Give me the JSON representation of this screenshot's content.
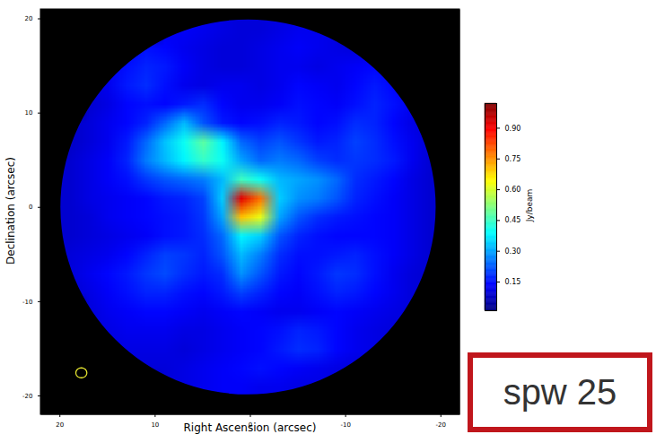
{
  "chart_data": {
    "type": "heatmap",
    "xlabel": "Right Ascension (arcsec)",
    "ylabel": "Declination (arcsec)",
    "xlim": [
      22,
      -22
    ],
    "ylim": [
      -22,
      21
    ],
    "xticks": [
      20,
      10,
      0,
      -10,
      -20
    ],
    "yticks": [
      -20,
      -10,
      0,
      10,
      20
    ],
    "annotation": "spw 25",
    "colorbar": {
      "label": "Jy/beam",
      "range": [
        0.01,
        1.02
      ],
      "ticks": [
        0.15,
        {
          "value": 0.3,
          "label": "0.30"
        },
        0.45,
        {
          "value": 0.6,
          "label": "0.60"
        },
        0.75,
        {
          "value": 0.9,
          "label": "0.90"
        }
      ]
    },
    "beam": {
      "x": 17.7,
      "y": -17.6,
      "major": 1.15,
      "minor": 1.05
    },
    "field": {
      "center": [
        0.2,
        0
      ],
      "radius": 19.7
    },
    "cells": {
      "x": [
        19,
        17,
        15,
        13,
        11,
        9,
        7,
        5,
        3,
        1,
        -1,
        -3,
        -5,
        -7,
        -9,
        -11,
        -13,
        -15,
        -17,
        -19
      ],
      "y": [
        19,
        17,
        15,
        13,
        11,
        9,
        7,
        5,
        3,
        1,
        -1,
        -3,
        -5,
        -7,
        -9,
        -11,
        -13,
        -15,
        -17,
        -19
      ],
      "values": [
        [
          null,
          null,
          null,
          null,
          null,
          0.12,
          0.13,
          0.12,
          0.11,
          0.1,
          0.1,
          0.11,
          0.12,
          0.12,
          0.11,
          null,
          null,
          null,
          null,
          null
        ],
        [
          null,
          null,
          null,
          0.13,
          0.15,
          0.14,
          0.12,
          0.11,
          0.1,
          0.1,
          0.11,
          0.12,
          0.13,
          0.12,
          0.11,
          0.1,
          0.1,
          null,
          null,
          null
        ],
        [
          null,
          null,
          0.12,
          0.15,
          0.17,
          0.16,
          0.13,
          0.11,
          0.1,
          0.1,
          0.11,
          0.12,
          0.12,
          0.11,
          0.12,
          0.13,
          0.14,
          0.12,
          null,
          null
        ],
        [
          null,
          0.1,
          0.12,
          0.16,
          0.18,
          0.15,
          0.12,
          0.11,
          0.12,
          0.12,
          0.11,
          0.12,
          0.14,
          0.13,
          0.12,
          0.14,
          0.16,
          0.14,
          0.11,
          null
        ],
        [
          null,
          0.09,
          0.11,
          0.14,
          0.15,
          0.14,
          0.16,
          0.18,
          0.14,
          0.12,
          0.12,
          0.13,
          0.15,
          0.14,
          0.13,
          0.15,
          0.17,
          0.15,
          0.12,
          null
        ],
        [
          0.08,
          0.1,
          0.12,
          0.14,
          0.17,
          0.24,
          0.32,
          0.22,
          0.16,
          0.14,
          0.15,
          0.17,
          0.16,
          0.14,
          0.15,
          0.18,
          0.17,
          0.14,
          0.11,
          0.09
        ],
        [
          0.08,
          0.1,
          0.12,
          0.16,
          0.24,
          0.33,
          0.4,
          0.48,
          0.38,
          0.24,
          0.2,
          0.22,
          0.19,
          0.16,
          0.17,
          0.2,
          0.18,
          0.15,
          0.12,
          0.09
        ],
        [
          0.09,
          0.11,
          0.13,
          0.17,
          0.26,
          0.32,
          0.38,
          0.44,
          0.4,
          0.3,
          0.24,
          0.26,
          0.24,
          0.2,
          0.18,
          0.19,
          0.18,
          0.16,
          0.12,
          0.09
        ],
        [
          0.09,
          0.11,
          0.13,
          0.15,
          0.19,
          0.22,
          0.24,
          0.26,
          0.32,
          0.45,
          0.4,
          0.32,
          0.3,
          0.28,
          0.24,
          0.18,
          0.16,
          0.14,
          0.11,
          0.09
        ],
        [
          0.09,
          0.11,
          0.12,
          0.13,
          0.14,
          0.16,
          0.17,
          0.2,
          0.34,
          0.92,
          0.78,
          0.34,
          0.28,
          0.26,
          0.22,
          0.17,
          0.15,
          0.13,
          0.11,
          0.09
        ],
        [
          0.09,
          0.1,
          0.12,
          0.13,
          0.14,
          0.15,
          0.16,
          0.19,
          0.3,
          0.7,
          0.62,
          0.3,
          0.22,
          0.18,
          0.16,
          0.15,
          0.14,
          0.13,
          0.11,
          0.09
        ],
        [
          0.09,
          0.1,
          0.11,
          0.12,
          0.13,
          0.15,
          0.16,
          0.18,
          0.24,
          0.38,
          0.34,
          0.22,
          0.17,
          0.15,
          0.14,
          0.14,
          0.14,
          0.13,
          0.11,
          0.09
        ],
        [
          0.1,
          0.11,
          0.12,
          0.14,
          0.17,
          0.2,
          0.19,
          0.17,
          0.22,
          0.32,
          0.26,
          0.18,
          0.15,
          0.15,
          0.16,
          0.17,
          0.15,
          0.13,
          0.11,
          0.09
        ],
        [
          0.1,
          0.12,
          0.14,
          0.16,
          0.19,
          0.21,
          0.18,
          0.16,
          0.18,
          0.28,
          0.22,
          0.16,
          0.14,
          0.16,
          0.19,
          0.18,
          0.15,
          0.12,
          0.1,
          0.09
        ],
        [
          0.09,
          0.11,
          0.13,
          0.15,
          0.17,
          0.17,
          0.15,
          0.14,
          0.16,
          0.2,
          0.17,
          0.14,
          0.13,
          0.15,
          0.17,
          0.16,
          0.14,
          0.12,
          0.1,
          0.09
        ],
        [
          null,
          0.1,
          0.12,
          0.13,
          0.14,
          0.14,
          0.13,
          0.12,
          0.13,
          0.14,
          0.13,
          0.12,
          0.12,
          0.13,
          0.14,
          0.13,
          0.12,
          0.11,
          0.1,
          null
        ],
        [
          null,
          0.1,
          0.11,
          0.12,
          0.12,
          0.12,
          0.11,
          0.11,
          0.12,
          0.13,
          0.14,
          0.15,
          0.17,
          0.16,
          0.14,
          0.12,
          0.11,
          0.1,
          0.1,
          null
        ],
        [
          null,
          null,
          0.1,
          0.11,
          0.11,
          0.11,
          0.1,
          0.11,
          0.12,
          0.13,
          0.14,
          0.16,
          0.18,
          0.17,
          0.14,
          0.12,
          0.11,
          0.1,
          null,
          null
        ],
        [
          null,
          null,
          null,
          0.1,
          0.1,
          0.1,
          0.11,
          0.12,
          0.13,
          0.14,
          0.15,
          0.14,
          0.13,
          0.12,
          0.11,
          0.1,
          0.1,
          null,
          null,
          null
        ],
        [
          null,
          null,
          null,
          null,
          null,
          0.1,
          0.11,
          0.12,
          0.13,
          0.13,
          0.12,
          0.12,
          0.11,
          0.11,
          0.1,
          null,
          null,
          null,
          null,
          null
        ]
      ]
    }
  }
}
